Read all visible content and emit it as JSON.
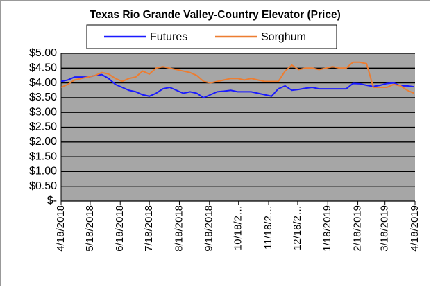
{
  "chart_data": {
    "type": "line",
    "title": "Texas Rio Grande Valley-Country Elevator (Price)",
    "x": [
      "4/18/2018",
      "4/25/2018",
      "5/2/2018",
      "5/9/2018",
      "5/16/2018",
      "5/23/2018",
      "5/30/2018",
      "6/6/2018",
      "6/13/2018",
      "6/20/2018",
      "6/27/2018",
      "7/4/2018",
      "7/11/2018",
      "7/18/2018",
      "7/25/2018",
      "8/1/2018",
      "8/8/2018",
      "8/15/2018",
      "8/22/2018",
      "8/29/2018",
      "9/5/2018",
      "9/12/2018",
      "9/19/2018",
      "9/26/2018",
      "10/3/2018",
      "10/10/2018",
      "10/17/2018",
      "10/24/2018",
      "10/31/2018",
      "11/7/2018",
      "11/14/2018",
      "11/21/2018",
      "11/28/2018",
      "12/5/2018",
      "12/12/2018",
      "12/19/2018",
      "12/26/2018",
      "1/2/2019",
      "1/9/2019",
      "1/16/2019",
      "1/23/2019",
      "1/30/2019",
      "2/6/2019",
      "2/13/2019",
      "2/20/2019",
      "2/27/2019",
      "3/6/2019",
      "3/13/2019",
      "3/20/2019",
      "3/27/2019",
      "4/3/2019",
      "4/10/2019",
      "4/17/2019"
    ],
    "series": [
      {
        "name": "Futures",
        "color": "#1a1aff",
        "values": [
          4.05,
          4.1,
          4.2,
          4.2,
          4.2,
          4.25,
          4.28,
          4.15,
          3.95,
          3.85,
          3.75,
          3.7,
          3.6,
          3.55,
          3.65,
          3.8,
          3.85,
          3.75,
          3.65,
          3.7,
          3.65,
          3.5,
          3.6,
          3.7,
          3.72,
          3.75,
          3.7,
          3.7,
          3.7,
          3.65,
          3.6,
          3.55,
          3.8,
          3.9,
          3.75,
          3.78,
          3.82,
          3.85,
          3.8,
          3.8,
          3.8,
          3.8,
          3.8,
          3.98,
          3.97,
          3.92,
          3.88,
          3.92,
          3.98,
          4.0,
          3.9,
          3.9,
          3.87
        ]
      },
      {
        "name": "Sorghum",
        "color": "#ed7d31",
        "values": [
          3.85,
          3.95,
          4.1,
          4.15,
          4.2,
          4.25,
          4.35,
          4.3,
          4.15,
          4.05,
          4.15,
          4.2,
          4.4,
          4.3,
          4.5,
          4.55,
          4.5,
          4.45,
          4.4,
          4.35,
          4.25,
          4.05,
          4.0,
          4.05,
          4.1,
          4.15,
          4.15,
          4.1,
          4.15,
          4.1,
          4.05,
          4.05,
          4.05,
          4.4,
          4.6,
          4.45,
          4.5,
          4.5,
          4.45,
          4.5,
          4.55,
          4.5,
          4.5,
          4.7,
          4.7,
          4.65,
          3.85,
          3.85,
          3.85,
          3.95,
          3.9,
          3.75,
          3.65
        ]
      }
    ],
    "xlim": [
      "4/18/2018",
      "4/18/2019"
    ],
    "xticks": [
      "4/18/2018",
      "5/18/2018",
      "6/18/2018",
      "7/18/2018",
      "8/18/2018",
      "9/18/2018",
      {
        "value": "10/18/2018",
        "label": "10/18/2…"
      },
      {
        "value": "11/18/2018",
        "label": "11/18/2…"
      },
      {
        "value": "12/18/2018",
        "label": "12/18/2…"
      },
      "1/18/2019",
      "2/18/2019",
      "3/18/2019",
      "4/18/2019"
    ],
    "ylim": [
      0,
      5
    ],
    "yticks": [
      {
        "value": 0,
        "label": "$-"
      },
      {
        "value": 0.5,
        "label": "$0.50"
      },
      {
        "value": 1,
        "label": "$1.00"
      },
      {
        "value": 1.5,
        "label": "$1.50"
      },
      {
        "value": 2,
        "label": "$2.00"
      },
      {
        "value": 2.5,
        "label": "$2.50"
      },
      {
        "value": 3,
        "label": "$3.00"
      },
      {
        "value": 3.5,
        "label": "$3.50"
      },
      {
        "value": 4,
        "label": "$4.00"
      },
      {
        "value": 4.5,
        "label": "$4.50"
      },
      {
        "value": 5,
        "label": "$5.00"
      }
    ],
    "grid": true,
    "legend": "top"
  }
}
